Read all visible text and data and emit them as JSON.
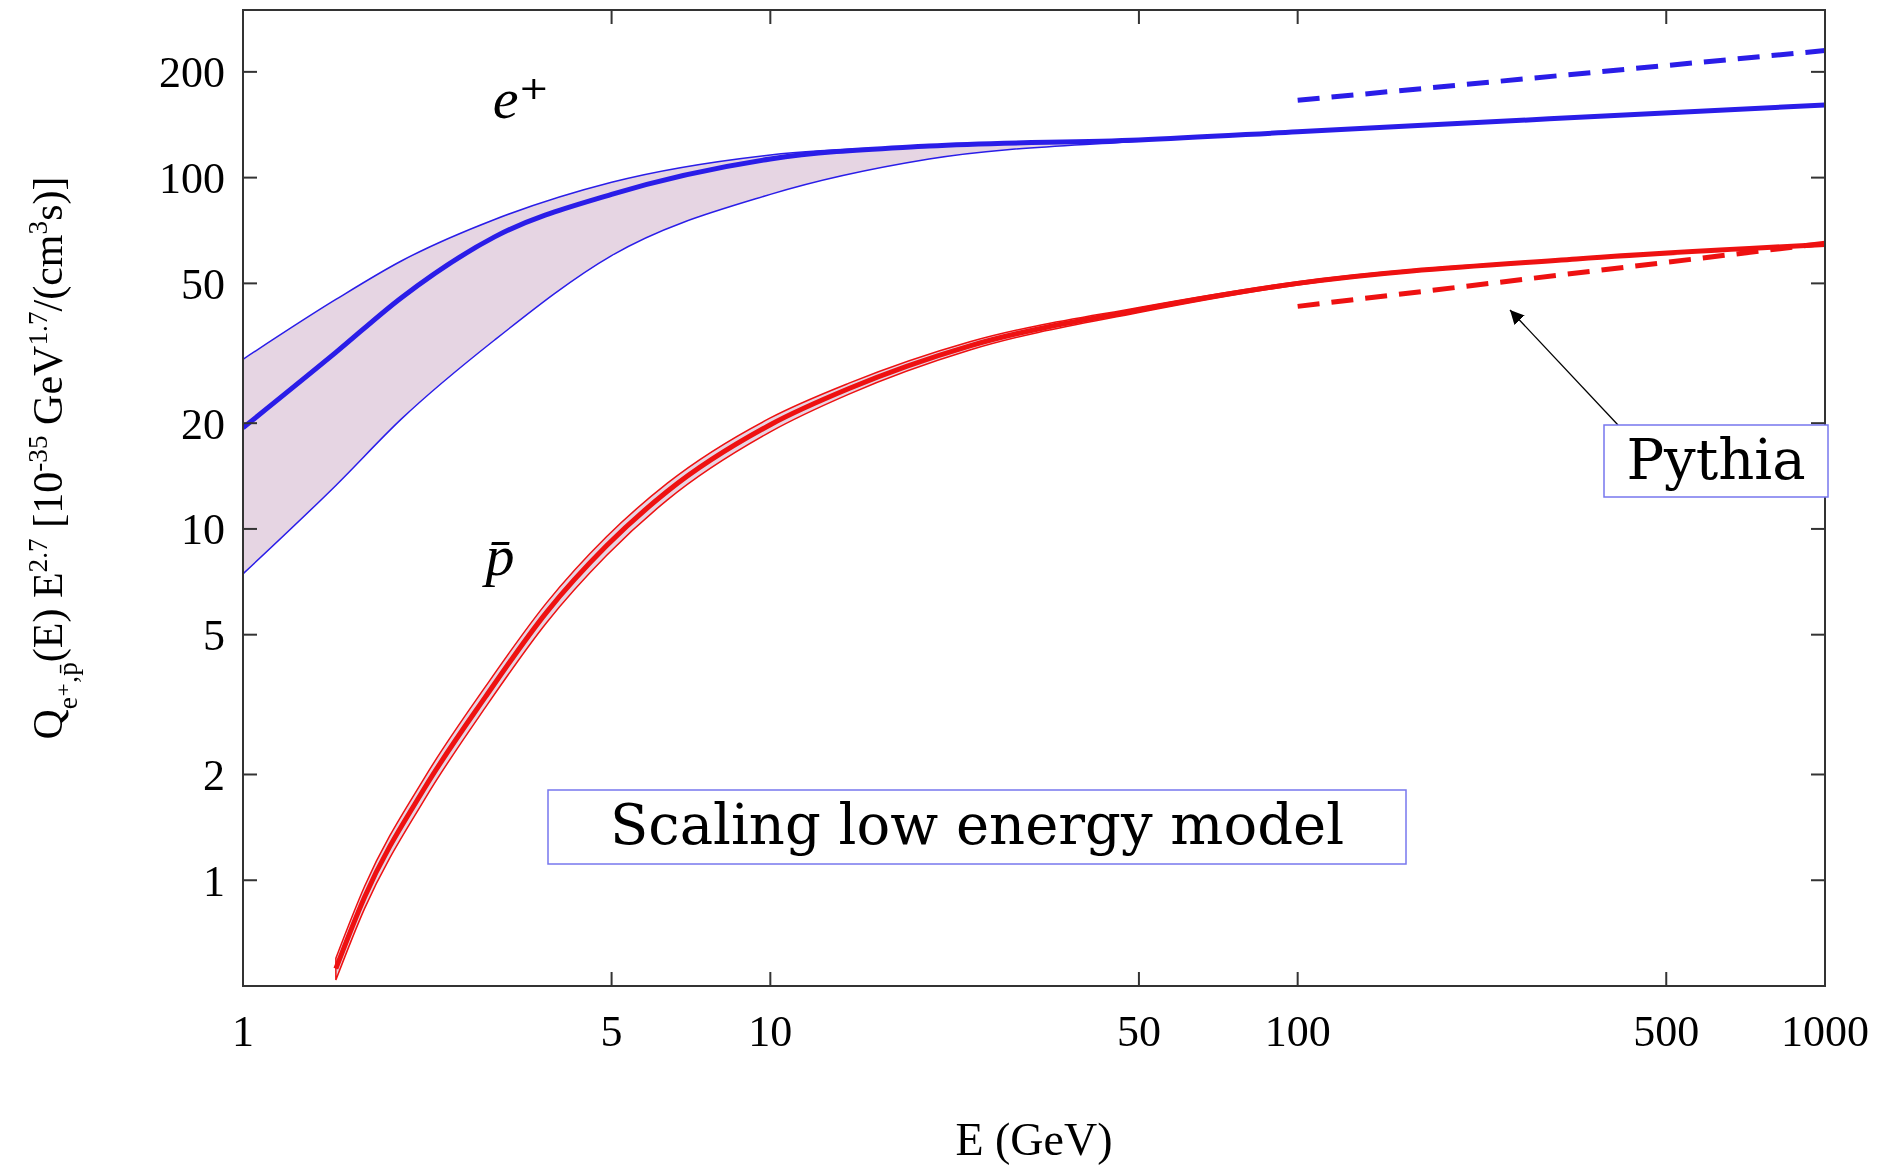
{
  "chart_data": {
    "type": "line",
    "log": "xy",
    "xlabel": "E  (GeV)",
    "ylabel": "Q$_{e⁺,p̄}$(E) E$^{2.7}$  [10$^{-35}$ GeV$^{1.7}$/(cm$^{3}$s)]",
    "xlim": [
      1,
      1000
    ],
    "ylim": [
      0.5,
      300
    ],
    "xticks": [
      1,
      5,
      10,
      50,
      100,
      500,
      1000
    ],
    "yticks": [
      1,
      2,
      5,
      10,
      20,
      50,
      100,
      200
    ],
    "annotations": [
      "Pythia",
      "Scaling low energy model"
    ],
    "series": [
      {
        "name": "e⁺",
        "color": "#2a1de8",
        "line_style": "solid",
        "x": [
          1,
          1.5,
          2,
          3,
          5,
          10,
          20,
          50,
          100,
          300,
          1000
        ],
        "values": [
          19.4,
          31.8,
          45.6,
          67.8,
          89.6,
          113,
          123,
          128,
          135,
          147,
          161
        ],
        "lower": [
          7.45,
          13.3,
          20.6,
          34.5,
          60,
          89.6,
          113,
          127,
          135,
          147,
          161
        ],
        "upper": [
          30.4,
          45,
          58,
          76,
          97,
          116,
          123,
          128,
          135,
          147,
          161
        ]
      },
      {
        "color": "#2a1de8",
        "line_style": "dashed",
        "x": [
          100,
          1000
        ],
        "values": [
          166,
          230
        ]
      },
      {
        "name": "p̄",
        "color": "#ee1111",
        "line_style": "solid",
        "x": [
          1.5,
          1.7,
          2.21,
          2.88,
          3.76,
          4.89,
          6.38,
          10,
          14.1,
          23.9,
          50,
          100,
          338,
          1000
        ],
        "values": [
          0.56,
          0.895,
          1.83,
          3.32,
          5.78,
          8.95,
          12.8,
          19.8,
          25.1,
          33.2,
          42,
          50,
          58.7,
          64.5
        ],
        "lower": [
          0.52,
          0.83,
          1.7,
          3.1,
          5.4,
          8.4,
          12.1,
          18.9,
          24.2,
          32.3,
          41.3,
          49.5,
          58.4,
          64.3
        ],
        "upper": [
          0.6,
          0.96,
          1.96,
          3.55,
          6.15,
          9.5,
          13.5,
          20.7,
          26,
          34.1,
          42.7,
          50.5,
          59,
          64.7
        ]
      },
      {
        "color": "#ee1111",
        "line_style": "dashed",
        "x": [
          100,
          1000
        ],
        "values": [
          43,
          65
        ]
      }
    ]
  }
}
